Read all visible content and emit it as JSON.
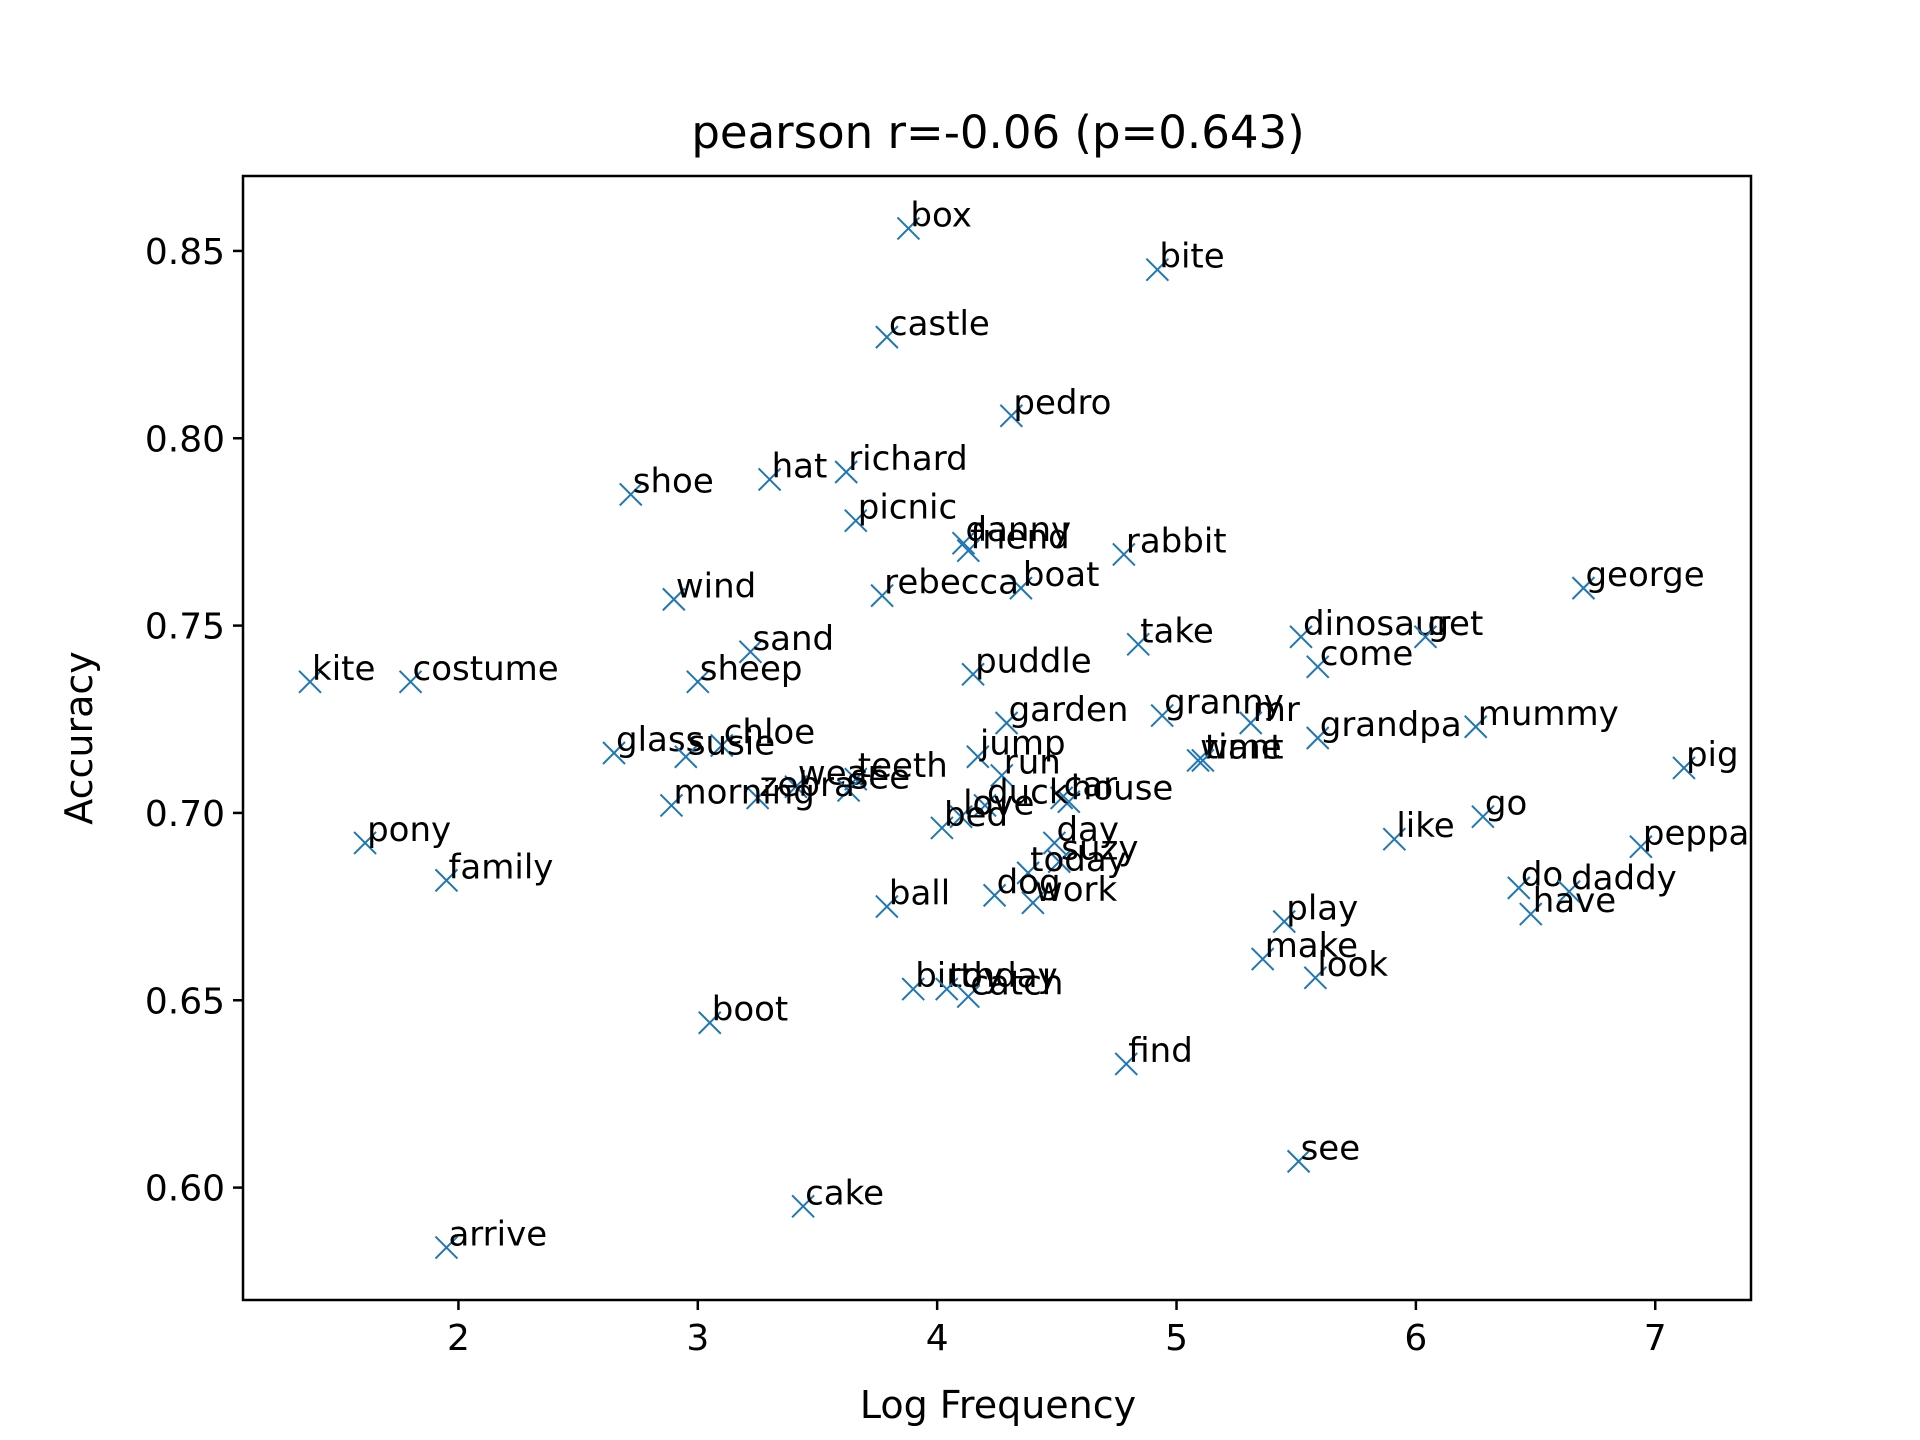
{
  "chart_data": {
    "type": "scatter",
    "title": "pearson r=-0.06 (p=0.643)",
    "xlabel": "Log Frequency",
    "ylabel": "Accuracy",
    "xlim": [
      1.1,
      7.4
    ],
    "ylim": [
      0.57,
      0.87
    ],
    "xticks": [
      2,
      3,
      4,
      5,
      6,
      7
    ],
    "xtick_labels": [
      "2",
      "3",
      "4",
      "5",
      "6",
      "7"
    ],
    "yticks": [
      0.6,
      0.65,
      0.7,
      0.75,
      0.8,
      0.85
    ],
    "ytick_labels": [
      "0.60",
      "0.65",
      "0.70",
      "0.75",
      "0.80",
      "0.85"
    ],
    "grid": false,
    "marker": "x",
    "marker_color": "#1f77b4",
    "points": [
      {
        "label": "box",
        "x": 3.88,
        "y": 0.856
      },
      {
        "label": "bite",
        "x": 4.92,
        "y": 0.845
      },
      {
        "label": "castle",
        "x": 3.79,
        "y": 0.827
      },
      {
        "label": "pedro",
        "x": 4.31,
        "y": 0.806
      },
      {
        "label": "richard",
        "x": 3.62,
        "y": 0.791
      },
      {
        "label": "hat",
        "x": 3.3,
        "y": 0.789
      },
      {
        "label": "shoe",
        "x": 2.72,
        "y": 0.785
      },
      {
        "label": "picnic",
        "x": 3.66,
        "y": 0.778
      },
      {
        "label": "danny",
        "x": 4.11,
        "y": 0.772
      },
      {
        "label": "friend",
        "x": 4.13,
        "y": 0.77
      },
      {
        "label": "rabbit",
        "x": 4.78,
        "y": 0.769
      },
      {
        "label": "george",
        "x": 6.7,
        "y": 0.76
      },
      {
        "label": "boat",
        "x": 4.35,
        "y": 0.76
      },
      {
        "label": "rebecca",
        "x": 3.77,
        "y": 0.758
      },
      {
        "label": "wind",
        "x": 2.9,
        "y": 0.757
      },
      {
        "label": "dinosaur",
        "x": 5.52,
        "y": 0.747
      },
      {
        "label": "get",
        "x": 6.04,
        "y": 0.747
      },
      {
        "label": "take",
        "x": 4.84,
        "y": 0.745
      },
      {
        "label": "sand",
        "x": 3.22,
        "y": 0.743
      },
      {
        "label": "come",
        "x": 5.59,
        "y": 0.739
      },
      {
        "label": "puddle",
        "x": 4.15,
        "y": 0.737
      },
      {
        "label": "sheep",
        "x": 3.0,
        "y": 0.735
      },
      {
        "label": "costume",
        "x": 1.8,
        "y": 0.735
      },
      {
        "label": "kite",
        "x": 1.38,
        "y": 0.735
      },
      {
        "label": "granny",
        "x": 4.94,
        "y": 0.726
      },
      {
        "label": "garden",
        "x": 4.29,
        "y": 0.724
      },
      {
        "label": "mr",
        "x": 5.31,
        "y": 0.724
      },
      {
        "label": "mummy",
        "x": 6.25,
        "y": 0.723
      },
      {
        "label": "grandpa",
        "x": 5.59,
        "y": 0.72
      },
      {
        "label": "chloe",
        "x": 3.1,
        "y": 0.718
      },
      {
        "label": "glass",
        "x": 2.65,
        "y": 0.716
      },
      {
        "label": "susie",
        "x": 2.95,
        "y": 0.715
      },
      {
        "label": "jump",
        "x": 4.17,
        "y": 0.715
      },
      {
        "label": "want",
        "x": 5.09,
        "y": 0.714
      },
      {
        "label": "time",
        "x": 5.11,
        "y": 0.714
      },
      {
        "label": "pig",
        "x": 7.12,
        "y": 0.712
      },
      {
        "label": "run",
        "x": 4.27,
        "y": 0.71
      },
      {
        "label": "teeth",
        "x": 3.66,
        "y": 0.709
      },
      {
        "label": "wear",
        "x": 3.41,
        "y": 0.707
      },
      {
        "label": "see",
        "x": 3.63,
        "y": 0.706
      },
      {
        "label": "zebra",
        "x": 3.25,
        "y": 0.704
      },
      {
        "label": "car",
        "x": 4.52,
        "y": 0.704
      },
      {
        "label": "house",
        "x": 4.55,
        "y": 0.703
      },
      {
        "label": "duck",
        "x": 4.2,
        "y": 0.702
      },
      {
        "label": "morning",
        "x": 2.89,
        "y": 0.702
      },
      {
        "label": "love",
        "x": 4.1,
        "y": 0.699
      },
      {
        "label": "go",
        "x": 6.28,
        "y": 0.699
      },
      {
        "label": "bed",
        "x": 4.02,
        "y": 0.696
      },
      {
        "label": "like",
        "x": 5.91,
        "y": 0.693
      },
      {
        "label": "day",
        "x": 4.49,
        "y": 0.692
      },
      {
        "label": "pony",
        "x": 1.61,
        "y": 0.692
      },
      {
        "label": "peppa",
        "x": 6.94,
        "y": 0.691
      },
      {
        "label": "suzy",
        "x": 4.51,
        "y": 0.687
      },
      {
        "label": "today",
        "x": 4.38,
        "y": 0.684
      },
      {
        "label": "family",
        "x": 1.95,
        "y": 0.682
      },
      {
        "label": "do",
        "x": 6.43,
        "y": 0.68
      },
      {
        "label": "daddy",
        "x": 6.64,
        "y": 0.679
      },
      {
        "label": "dog",
        "x": 4.24,
        "y": 0.678
      },
      {
        "label": "work",
        "x": 4.4,
        "y": 0.676
      },
      {
        "label": "ball",
        "x": 3.79,
        "y": 0.675
      },
      {
        "label": "have",
        "x": 6.48,
        "y": 0.673
      },
      {
        "label": "play",
        "x": 5.45,
        "y": 0.671
      },
      {
        "label": "make",
        "x": 5.36,
        "y": 0.661
      },
      {
        "label": "look",
        "x": 5.58,
        "y": 0.656
      },
      {
        "label": "birthday",
        "x": 3.9,
        "y": 0.653
      },
      {
        "label": "toy",
        "x": 4.04,
        "y": 0.653
      },
      {
        "label": "catch",
        "x": 4.13,
        "y": 0.651
      },
      {
        "label": "boot",
        "x": 3.05,
        "y": 0.644
      },
      {
        "label": "find",
        "x": 4.79,
        "y": 0.633
      },
      {
        "label": "see",
        "x": 5.51,
        "y": 0.607
      },
      {
        "label": "cake",
        "x": 3.44,
        "y": 0.595
      },
      {
        "label": "arrive",
        "x": 1.95,
        "y": 0.584
      }
    ]
  }
}
